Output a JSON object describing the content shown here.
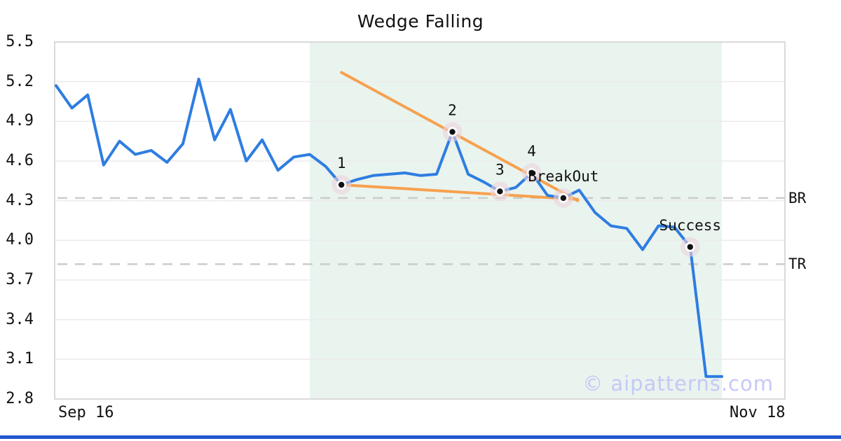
{
  "page": {
    "title": "Wedge Falling",
    "watermark": "© aipatterns.com"
  },
  "axis": {
    "x_left_label": "Sep 16",
    "x_right_label": "Nov 18",
    "br_label": "BR",
    "tr_label": "TR"
  },
  "colors": {
    "line_blue": "#2e7de1",
    "trend_orange": "#f7a14e",
    "zone_fill": "#e9f4ef",
    "grid": "#ebebeb",
    "border": "#d9d9d9",
    "dashed": "#cccccc",
    "marker_dot": "#111111",
    "marker_halo": "#ecd2da",
    "annotation_text": "#111111",
    "watermark": "#c6c8f5",
    "footer_bar": "#2356cf"
  },
  "chart_data": {
    "type": "line",
    "title": "Wedge Falling",
    "xlabel": "",
    "ylabel": "",
    "x_start_label": "Sep 16",
    "x_end_label": "Nov 18",
    "ylim": [
      2.8,
      5.5
    ],
    "yticks": [
      5.5,
      5.2,
      4.9,
      4.6,
      4.3,
      4.0,
      3.7,
      3.4,
      3.1,
      2.8
    ],
    "grid": "horizontal",
    "values": [
      5.17,
      5.0,
      5.1,
      4.57,
      4.75,
      4.65,
      4.68,
      4.59,
      4.73,
      5.22,
      4.76,
      4.99,
      4.6,
      4.76,
      4.53,
      4.63,
      4.65,
      4.56,
      4.42,
      4.46,
      4.49,
      4.5,
      4.51,
      4.49,
      4.5,
      4.82,
      4.5,
      4.44,
      4.37,
      4.4,
      4.51,
      4.34,
      4.32,
      4.38,
      4.21,
      4.11,
      4.09,
      3.93,
      4.11,
      4.1,
      3.95,
      2.97,
      2.97
    ],
    "levels": [
      {
        "name": "BR",
        "value": 4.32
      },
      {
        "name": "TR",
        "value": 3.82
      }
    ],
    "pattern_zone": {
      "i1": 16,
      "i2": 42
    },
    "trendlines": [
      {
        "name": "upper",
        "i1": 18.0,
        "v1": 5.27,
        "i2": 32.9,
        "v2": 4.3
      },
      {
        "name": "lower",
        "i1": 18.0,
        "v1": 4.42,
        "i2": 32.9,
        "v2": 4.31
      }
    ],
    "annotations": [
      {
        "label": "1",
        "i": 18,
        "v": 4.42
      },
      {
        "label": "2",
        "i": 25,
        "v": 4.82
      },
      {
        "label": "3",
        "i": 28,
        "v": 4.37
      },
      {
        "label": "4",
        "i": 30,
        "v": 4.51
      },
      {
        "label": "BreakOut",
        "i": 32,
        "v": 4.32
      },
      {
        "label": "Success",
        "i": 40,
        "v": 3.95
      }
    ]
  }
}
